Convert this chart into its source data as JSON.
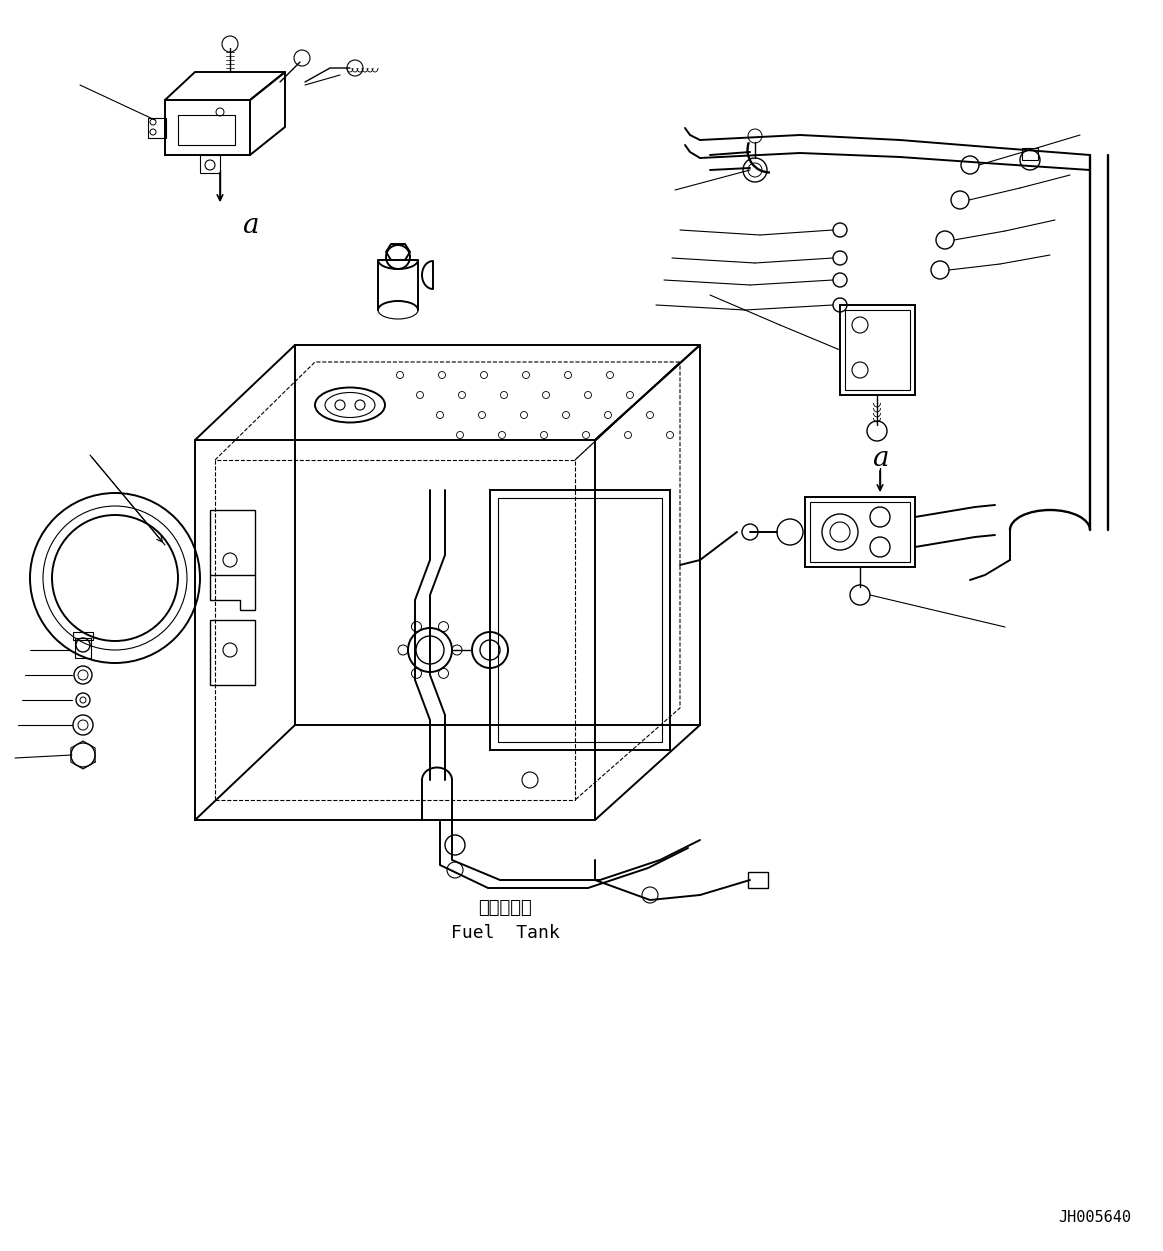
{
  "background_color": "#ffffff",
  "text_fuel_tank_jp": "燃料タンク",
  "text_fuel_tank_en": "Fuel  Tank",
  "text_label_a1": "a",
  "text_label_a2": "a",
  "text_code": "JH005640",
  "line_color": "#000000",
  "figsize": [
    11.63,
    12.51
  ],
  "dpi": 100
}
